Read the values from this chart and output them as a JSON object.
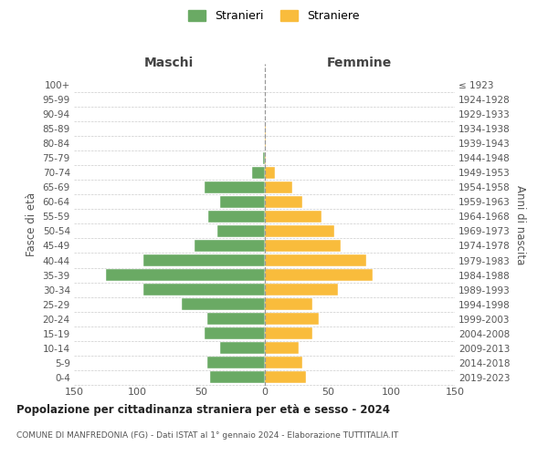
{
  "age_groups": [
    "0-4",
    "5-9",
    "10-14",
    "15-19",
    "20-24",
    "25-29",
    "30-34",
    "35-39",
    "40-44",
    "45-49",
    "50-54",
    "55-59",
    "60-64",
    "65-69",
    "70-74",
    "75-79",
    "80-84",
    "85-89",
    "90-94",
    "95-99",
    "100+"
  ],
  "birth_years": [
    "2019-2023",
    "2014-2018",
    "2009-2013",
    "2004-2008",
    "1999-2003",
    "1994-1998",
    "1989-1993",
    "1984-1988",
    "1979-1983",
    "1974-1978",
    "1969-1973",
    "1964-1968",
    "1959-1963",
    "1954-1958",
    "1949-1953",
    "1944-1948",
    "1939-1943",
    "1934-1938",
    "1929-1933",
    "1924-1928",
    "≤ 1923"
  ],
  "males": [
    43,
    45,
    35,
    47,
    45,
    65,
    95,
    125,
    95,
    55,
    37,
    44,
    35,
    47,
    10,
    1,
    0,
    0,
    0,
    0,
    0
  ],
  "females": [
    33,
    30,
    27,
    38,
    43,
    38,
    58,
    85,
    80,
    60,
    55,
    45,
    30,
    22,
    8,
    1,
    1,
    1,
    0,
    0,
    0
  ],
  "male_color": "#6aaa64",
  "female_color": "#f9bc3c",
  "bg_color": "#ffffff",
  "grid_color": "#cccccc",
  "title": "Popolazione per cittadinanza straniera per età e sesso - 2024",
  "subtitle": "COMUNE DI MANFREDONIA (FG) - Dati ISTAT al 1° gennaio 2024 - Elaborazione TUTTITALIA.IT",
  "ylabel_left": "Fasce di età",
  "ylabel_right": "Anni di nascita",
  "xlabel_left": "Maschi",
  "xlabel_right": "Femmine",
  "legend_male": "Stranieri",
  "legend_female": "Straniere",
  "xlim": 150
}
